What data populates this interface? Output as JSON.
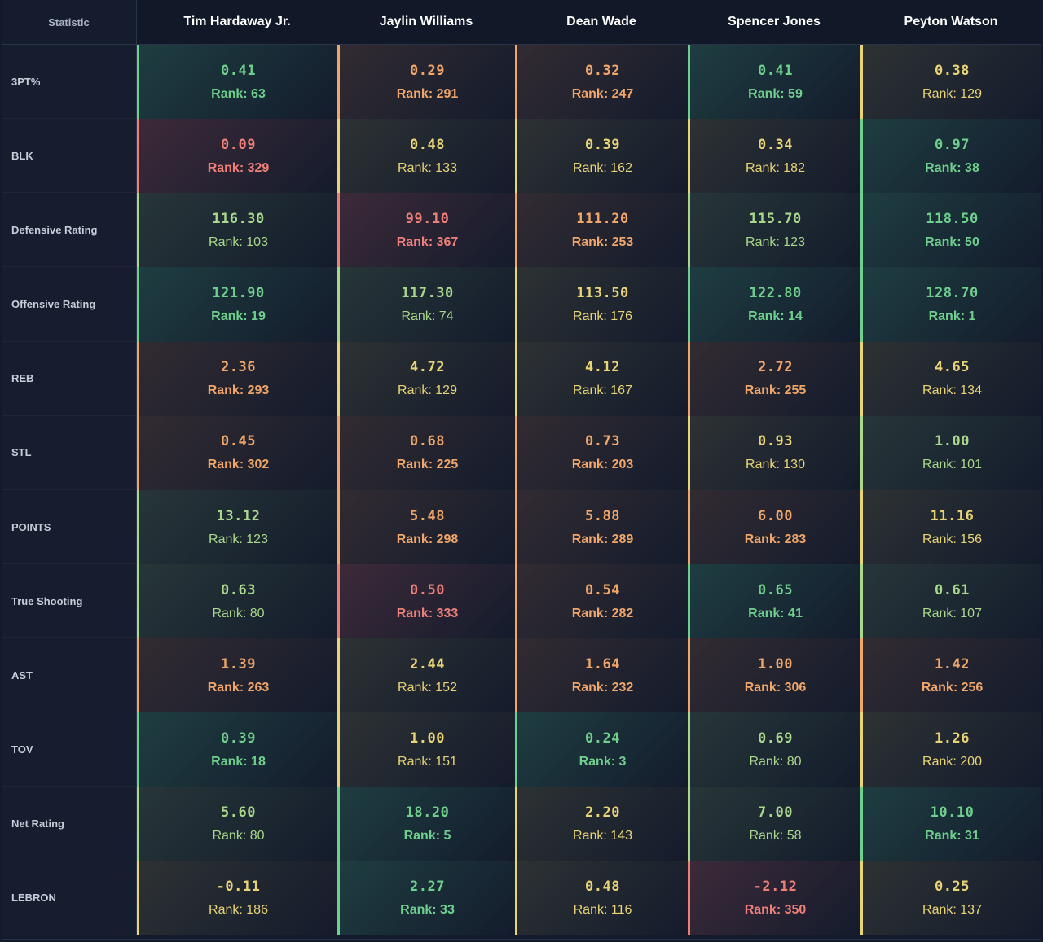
{
  "header": {
    "stat_label": "Statistic",
    "players": [
      "Tim Hardaway Jr.",
      "Jaylin Williams",
      "Dean Wade",
      "Spencer Jones",
      "Peyton Watson"
    ]
  },
  "colors": {
    "green": "#6fcf8c",
    "lightgreen": "#a9d88c",
    "yellow": "#e8d477",
    "orange": "#f0a66a",
    "red": "#ee7f78"
  },
  "rows": [
    {
      "stat": "3PT%",
      "cells": [
        {
          "value": "0.41",
          "rank": "Rank: 63",
          "tone": "green"
        },
        {
          "value": "0.29",
          "rank": "Rank: 291",
          "tone": "orange"
        },
        {
          "value": "0.32",
          "rank": "Rank: 247",
          "tone": "orange"
        },
        {
          "value": "0.41",
          "rank": "Rank: 59",
          "tone": "green"
        },
        {
          "value": "0.38",
          "rank": "Rank: 129",
          "tone": "yellow"
        }
      ]
    },
    {
      "stat": "BLK",
      "cells": [
        {
          "value": "0.09",
          "rank": "Rank: 329",
          "tone": "red"
        },
        {
          "value": "0.48",
          "rank": "Rank: 133",
          "tone": "yellow"
        },
        {
          "value": "0.39",
          "rank": "Rank: 162",
          "tone": "yellow"
        },
        {
          "value": "0.34",
          "rank": "Rank: 182",
          "tone": "yellow"
        },
        {
          "value": "0.97",
          "rank": "Rank: 38",
          "tone": "green"
        }
      ]
    },
    {
      "stat": "Defensive Rating",
      "cells": [
        {
          "value": "116.30",
          "rank": "Rank: 103",
          "tone": "lightgreen"
        },
        {
          "value": "99.10",
          "rank": "Rank: 367",
          "tone": "red"
        },
        {
          "value": "111.20",
          "rank": "Rank: 253",
          "tone": "orange"
        },
        {
          "value": "115.70",
          "rank": "Rank: 123",
          "tone": "lightgreen"
        },
        {
          "value": "118.50",
          "rank": "Rank: 50",
          "tone": "green"
        }
      ]
    },
    {
      "stat": "Offensive Rating",
      "cells": [
        {
          "value": "121.90",
          "rank": "Rank: 19",
          "tone": "green"
        },
        {
          "value": "117.30",
          "rank": "Rank: 74",
          "tone": "lightgreen"
        },
        {
          "value": "113.50",
          "rank": "Rank: 176",
          "tone": "yellow"
        },
        {
          "value": "122.80",
          "rank": "Rank: 14",
          "tone": "green"
        },
        {
          "value": "128.70",
          "rank": "Rank: 1",
          "tone": "green"
        }
      ]
    },
    {
      "stat": "REB",
      "cells": [
        {
          "value": "2.36",
          "rank": "Rank: 293",
          "tone": "orange"
        },
        {
          "value": "4.72",
          "rank": "Rank: 129",
          "tone": "yellow"
        },
        {
          "value": "4.12",
          "rank": "Rank: 167",
          "tone": "yellow"
        },
        {
          "value": "2.72",
          "rank": "Rank: 255",
          "tone": "orange"
        },
        {
          "value": "4.65",
          "rank": "Rank: 134",
          "tone": "yellow"
        }
      ]
    },
    {
      "stat": "STL",
      "cells": [
        {
          "value": "0.45",
          "rank": "Rank: 302",
          "tone": "orange"
        },
        {
          "value": "0.68",
          "rank": "Rank: 225",
          "tone": "orange"
        },
        {
          "value": "0.73",
          "rank": "Rank: 203",
          "tone": "orange"
        },
        {
          "value": "0.93",
          "rank": "Rank: 130",
          "tone": "yellow"
        },
        {
          "value": "1.00",
          "rank": "Rank: 101",
          "tone": "lightgreen"
        }
      ]
    },
    {
      "stat": "POINTS",
      "cells": [
        {
          "value": "13.12",
          "rank": "Rank: 123",
          "tone": "lightgreen"
        },
        {
          "value": "5.48",
          "rank": "Rank: 298",
          "tone": "orange"
        },
        {
          "value": "5.88",
          "rank": "Rank: 289",
          "tone": "orange"
        },
        {
          "value": "6.00",
          "rank": "Rank: 283",
          "tone": "orange"
        },
        {
          "value": "11.16",
          "rank": "Rank: 156",
          "tone": "yellow"
        }
      ]
    },
    {
      "stat": "True Shooting",
      "cells": [
        {
          "value": "0.63",
          "rank": "Rank: 80",
          "tone": "lightgreen"
        },
        {
          "value": "0.50",
          "rank": "Rank: 333",
          "tone": "red"
        },
        {
          "value": "0.54",
          "rank": "Rank: 282",
          "tone": "orange"
        },
        {
          "value": "0.65",
          "rank": "Rank: 41",
          "tone": "green"
        },
        {
          "value": "0.61",
          "rank": "Rank: 107",
          "tone": "lightgreen"
        }
      ]
    },
    {
      "stat": "AST",
      "cells": [
        {
          "value": "1.39",
          "rank": "Rank: 263",
          "tone": "orange"
        },
        {
          "value": "2.44",
          "rank": "Rank: 152",
          "tone": "yellow"
        },
        {
          "value": "1.64",
          "rank": "Rank: 232",
          "tone": "orange"
        },
        {
          "value": "1.00",
          "rank": "Rank: 306",
          "tone": "orange"
        },
        {
          "value": "1.42",
          "rank": "Rank: 256",
          "tone": "orange"
        }
      ]
    },
    {
      "stat": "TOV",
      "cells": [
        {
          "value": "0.39",
          "rank": "Rank: 18",
          "tone": "green"
        },
        {
          "value": "1.00",
          "rank": "Rank: 151",
          "tone": "yellow"
        },
        {
          "value": "0.24",
          "rank": "Rank: 3",
          "tone": "green"
        },
        {
          "value": "0.69",
          "rank": "Rank: 80",
          "tone": "lightgreen"
        },
        {
          "value": "1.26",
          "rank": "Rank: 200",
          "tone": "yellow"
        }
      ]
    },
    {
      "stat": "Net Rating",
      "cells": [
        {
          "value": "5.60",
          "rank": "Rank: 80",
          "tone": "lightgreen"
        },
        {
          "value": "18.20",
          "rank": "Rank: 5",
          "tone": "green"
        },
        {
          "value": "2.20",
          "rank": "Rank: 143",
          "tone": "yellow"
        },
        {
          "value": "7.00",
          "rank": "Rank: 58",
          "tone": "lightgreen"
        },
        {
          "value": "10.10",
          "rank": "Rank: 31",
          "tone": "green"
        }
      ]
    },
    {
      "stat": "LEBRON",
      "cells": [
        {
          "value": "-0.11",
          "rank": "Rank: 186",
          "tone": "yellow"
        },
        {
          "value": "2.27",
          "rank": "Rank: 33",
          "tone": "green"
        },
        {
          "value": "0.48",
          "rank": "Rank: 116",
          "tone": "yellow"
        },
        {
          "value": "-2.12",
          "rank": "Rank: 350",
          "tone": "red"
        },
        {
          "value": "0.25",
          "rank": "Rank: 137",
          "tone": "yellow"
        }
      ]
    }
  ]
}
